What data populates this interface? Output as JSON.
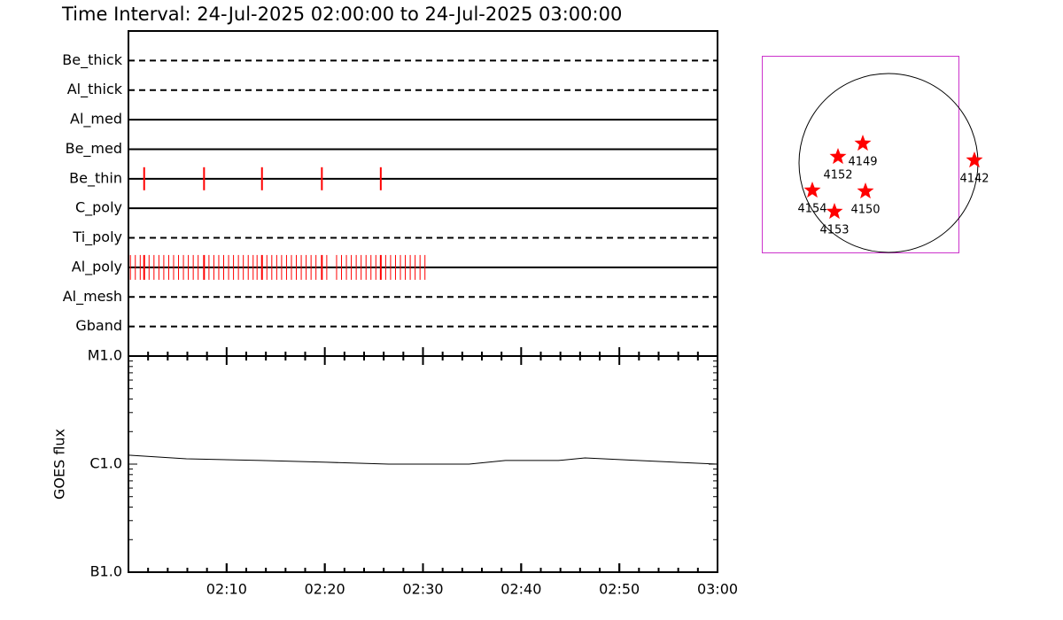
{
  "title": "Time Interval: 24-Jul-2025 02:00:00 to 24-Jul-2025 03:00:00",
  "chart_data": [
    {
      "type": "timeline",
      "categories": [
        "Be_thick",
        "Al_thick",
        "Al_med",
        "Be_med",
        "Be_thin",
        "C_poly",
        "Ti_poly",
        "Al_poly",
        "Al_mesh",
        "Gband"
      ],
      "line_styles": [
        "dashed",
        "dashed",
        "solid",
        "solid",
        "solid",
        "solid",
        "dashed",
        "solid",
        "dashed",
        "dashed"
      ],
      "events": [
        [],
        [],
        [],
        [],
        [
          1.6,
          7.7,
          13.6,
          19.7,
          25.7
        ],
        [],
        [],
        [
          0.2,
          0.7,
          1.2,
          1.6,
          2.1,
          2.6,
          3.1,
          3.6,
          4.1,
          4.6,
          5.1,
          5.6,
          6.1,
          6.6,
          7.1,
          7.7,
          8.2,
          8.7,
          9.2,
          9.7,
          10.2,
          10.7,
          11.2,
          11.7,
          12.2,
          12.7,
          13.1,
          13.6,
          14.1,
          14.6,
          15.1,
          15.6,
          16.1,
          16.6,
          17.1,
          17.6,
          18.1,
          18.6,
          19.1,
          19.7,
          20.2,
          21.2,
          21.7,
          22.2,
          22.7,
          23.2,
          23.7,
          24.2,
          24.7,
          25.2,
          25.7,
          26.2,
          26.7,
          27.2,
          27.7,
          28.2,
          28.7,
          29.2,
          29.7,
          30.2
        ],
        [],
        []
      ],
      "color": "#ff0000",
      "xlim": [
        0,
        60
      ]
    },
    {
      "type": "line",
      "ylabel": "GOES flux",
      "x": [
        0,
        5.9,
        13.5,
        20.2,
        26.5,
        34.7,
        38.4,
        43.8,
        46.5,
        51.9,
        60
      ],
      "values": [
        1.21e-06,
        1.12e-06,
        1.08e-06,
        1.04e-06,
        1e-06,
        1e-06,
        1.08e-06,
        1.08e-06,
        1.14e-06,
        1.08e-06,
        1e-06
      ],
      "color": "#000000",
      "log_scale": true,
      "xlim": [
        0,
        60
      ],
      "xticks": [
        {
          "value": 10,
          "label": "02:10"
        },
        {
          "value": 20,
          "label": "02:20"
        },
        {
          "value": 30,
          "label": "02:30"
        },
        {
          "value": 40,
          "label": "02:40"
        },
        {
          "value": 50,
          "label": "02:50"
        },
        {
          "value": 60,
          "label": "03:00"
        }
      ],
      "ylim": [
        1e-07,
        1e-05
      ],
      "yticks": [
        {
          "value": 1e-07,
          "label": "B1.0"
        },
        {
          "value": 1e-06,
          "label": "C1.0"
        },
        {
          "value": 1e-05,
          "label": "M1.0"
        }
      ]
    }
  ],
  "map": {
    "regions": [
      "4149",
      "4152",
      "4142",
      "4154",
      "4150",
      "4153"
    ],
    "color": "#ff0000"
  }
}
